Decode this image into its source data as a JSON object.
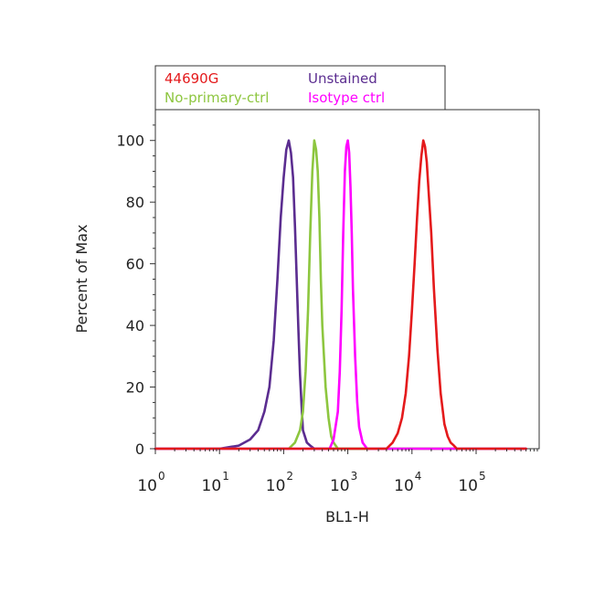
{
  "chart_data": {
    "type": "line",
    "title": "",
    "xlabel": "BL1-H",
    "ylabel": "Percent of Max",
    "x_scale": "log",
    "xlim": [
      1,
      600000
    ],
    "ylim": [
      0,
      110
    ],
    "grid": false,
    "legend_position": "top",
    "x_ticks": [
      {
        "base": "10",
        "exp": "0"
      },
      {
        "base": "10",
        "exp": "1"
      },
      {
        "base": "10",
        "exp": "2"
      },
      {
        "base": "10",
        "exp": "3"
      },
      {
        "base": "10",
        "exp": "4"
      },
      {
        "base": "10",
        "exp": "5"
      }
    ],
    "y_ticks": [
      "0",
      "20",
      "40",
      "60",
      "80",
      "100"
    ],
    "series": [
      {
        "name": "Unstained",
        "color": "#5b2d90",
        "x": [
          1,
          10,
          20,
          30,
          40,
          50,
          60,
          70,
          80,
          90,
          100,
          110,
          120,
          130,
          140,
          150,
          160,
          170,
          180,
          190,
          200,
          230,
          260,
          300,
          600000
        ],
        "y": [
          0,
          0,
          1,
          3,
          6,
          12,
          20,
          35,
          55,
          75,
          88,
          97,
          100,
          96,
          88,
          72,
          55,
          38,
          24,
          14,
          6,
          2,
          1,
          0,
          0
        ]
      },
      {
        "name": "No-primary-ctrl",
        "color": "#8dc63f",
        "x": [
          1,
          120,
          150,
          180,
          200,
          220,
          240,
          260,
          280,
          300,
          320,
          340,
          360,
          380,
          400,
          450,
          500,
          550,
          600,
          700,
          600000
        ],
        "y": [
          0,
          0,
          2,
          6,
          12,
          25,
          45,
          70,
          90,
          100,
          97,
          90,
          75,
          55,
          40,
          20,
          10,
          4,
          2,
          0,
          0
        ]
      },
      {
        "name": "Isotype ctrl",
        "color": "#ff00ff",
        "x": [
          1,
          520,
          600,
          700,
          750,
          800,
          850,
          900,
          950,
          1000,
          1050,
          1100,
          1150,
          1200,
          1300,
          1400,
          1500,
          1700,
          2000,
          600000
        ],
        "y": [
          0,
          0,
          3,
          12,
          25,
          45,
          70,
          90,
          98,
          100,
          96,
          85,
          70,
          52,
          30,
          15,
          7,
          2,
          0,
          0
        ]
      },
      {
        "name": "44690G",
        "color": "#e41a1c",
        "x": [
          1,
          4000,
          5000,
          6000,
          7000,
          8000,
          9000,
          10000,
          11000,
          12000,
          13000,
          14000,
          15000,
          16000,
          17000,
          18000,
          20000,
          22000,
          25000,
          28000,
          32000,
          36000,
          40000,
          45000,
          50000,
          600000
        ],
        "y": [
          0,
          0,
          2,
          5,
          10,
          18,
          30,
          45,
          60,
          75,
          87,
          95,
          100,
          98,
          93,
          85,
          70,
          52,
          32,
          18,
          8,
          4,
          2,
          1,
          0,
          0
        ]
      }
    ],
    "legend": [
      {
        "label": "44690G",
        "color": "#e41a1c"
      },
      {
        "label": "Unstained",
        "color": "#5b2d90"
      },
      {
        "label": "No-primary-ctrl",
        "color": "#8dc63f"
      },
      {
        "label": "Isotype ctrl",
        "color": "#ff00ff"
      }
    ]
  }
}
